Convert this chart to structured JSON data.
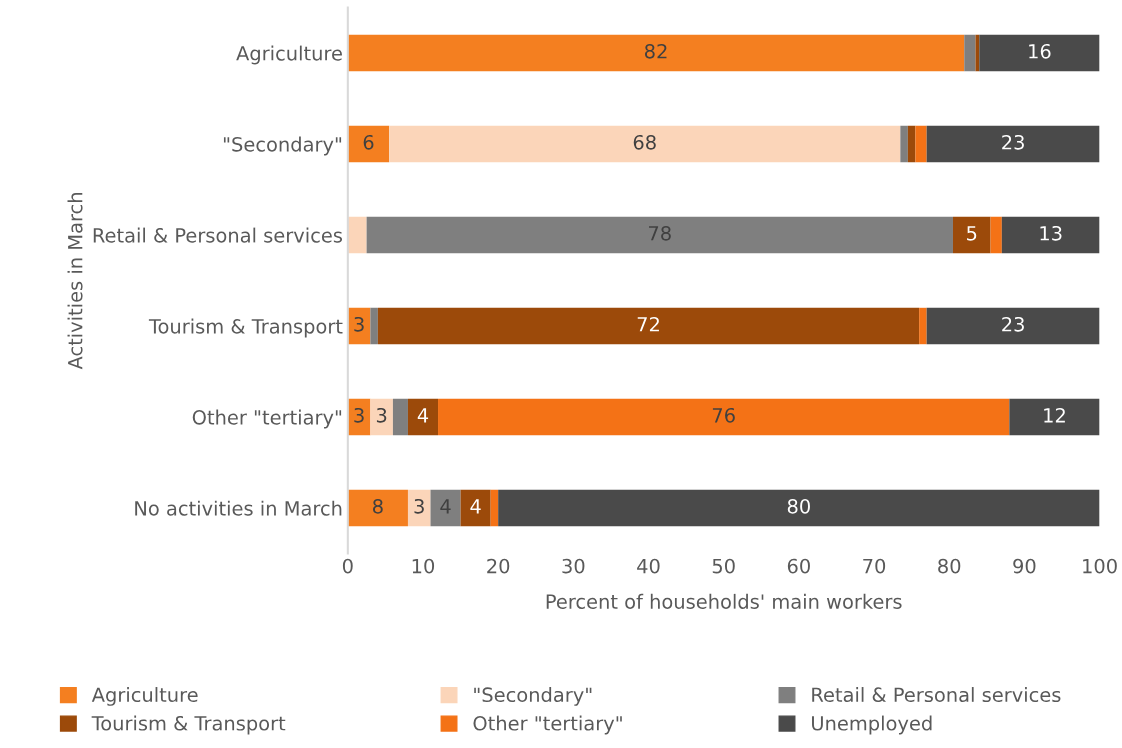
{
  "chart_data": {
    "type": "bar",
    "orientation": "horizontal",
    "stacked": true,
    "categories": [
      "Agriculture",
      "\"Secondary\"",
      "Retail & Personal services",
      "Tourism & Transport",
      "Other \"tertiary\"",
      "No activities in March"
    ],
    "series": [
      {
        "name": "Agriculture",
        "color": "#f47f20",
        "values": [
          82,
          5.5,
          0,
          3,
          3,
          8
        ],
        "value_labels": [
          "82",
          "6",
          null,
          "3",
          "3",
          "8"
        ]
      },
      {
        "name": "\"Secondary\"",
        "color": "#fbd5b9",
        "values": [
          0,
          68,
          2.5,
          0,
          3,
          3
        ],
        "value_labels": [
          null,
          "68",
          null,
          null,
          "3",
          "3"
        ]
      },
      {
        "name": "Retail & Personal services",
        "color": "#7f7f7f",
        "values": [
          1.5,
          1,
          78,
          1,
          2,
          4
        ],
        "value_labels": [
          null,
          null,
          "78",
          null,
          null,
          "4"
        ]
      },
      {
        "name": "Tourism & Transport",
        "color": "#9c4a0a",
        "values": [
          0.5,
          1,
          5,
          72,
          4,
          4
        ],
        "value_labels": [
          null,
          null,
          "5",
          "72",
          "4",
          "4"
        ]
      },
      {
        "name": "Other \"tertiary\"",
        "color": "#f47216",
        "values": [
          0,
          1.5,
          1.5,
          1,
          76,
          1
        ],
        "value_labels": [
          null,
          null,
          null,
          null,
          "76",
          null
        ]
      },
      {
        "name": "Unemployed",
        "color": "#4a4a4a",
        "values": [
          16,
          23,
          13,
          23,
          12,
          80
        ],
        "value_labels": [
          "16",
          "23",
          "13",
          "23",
          "12",
          "80"
        ]
      }
    ],
    "xlabel": "Percent of households' main workers",
    "ylabel": "Activities in March",
    "xlim": [
      0,
      100
    ],
    "xticks": [
      0,
      10,
      20,
      30,
      40,
      50,
      60,
      70,
      80,
      90,
      100
    ],
    "grid": false,
    "legend": "bottom"
  }
}
